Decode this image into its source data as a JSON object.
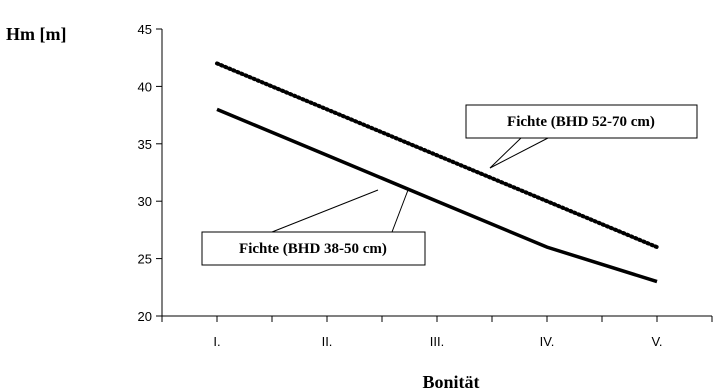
{
  "chart_data": {
    "type": "line",
    "ylabel": "Hm [m]",
    "xlabel": "Bonität",
    "categories": [
      "I.",
      "II.",
      "III.",
      "IV.",
      "V."
    ],
    "ylim": [
      20,
      45
    ],
    "yticks": [
      20,
      25,
      30,
      35,
      40,
      45
    ],
    "grid": false,
    "series": [
      {
        "name": "Fichte (BHD 52-70 cm)",
        "style": "dotted",
        "color": "#000000",
        "values": [
          42,
          38,
          34,
          30,
          26
        ]
      },
      {
        "name": "Fichte (BHD 38-50 cm)",
        "style": "solid",
        "color": "#000000",
        "values": [
          38,
          34,
          30,
          26,
          23
        ]
      }
    ]
  }
}
